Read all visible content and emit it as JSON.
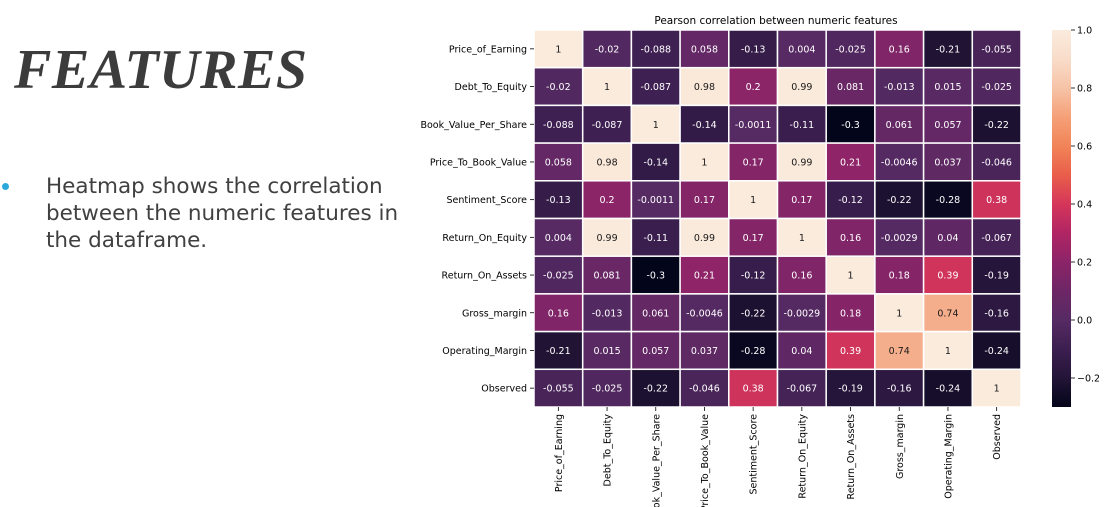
{
  "slide": {
    "title": "FEATURES",
    "bullet": "Heatmap shows the correlation between the numeric features in the dataframe."
  },
  "chart_data": {
    "type": "heatmap",
    "title": "Pearson correlation between numeric features",
    "row_labels": [
      "Price_of_Earning",
      "Debt_To_Equity",
      "Book_Value_Per_Share",
      "Price_To_Book_Value",
      "Sentiment_Score",
      "Return_On_Equity",
      "Return_On_Assets",
      "Gross_margin",
      "Operating_Margin",
      "Observed"
    ],
    "col_labels": [
      "Price_of_Earning",
      "Debt_To_Equity",
      "ook_Value_Per_Share",
      "Price_To_Book_Value",
      "Sentiment_Score",
      "Return_On_Equity",
      "Return_On_Assets",
      "Gross_margin",
      "Operating_Margin",
      "Observed"
    ],
    "values": [
      [
        1,
        -0.02,
        -0.088,
        0.058,
        -0.13,
        0.004,
        -0.025,
        0.16,
        -0.21,
        -0.055
      ],
      [
        -0.02,
        1,
        -0.087,
        0.98,
        0.2,
        0.99,
        0.081,
        -0.013,
        0.015,
        -0.025
      ],
      [
        -0.088,
        -0.087,
        1,
        -0.14,
        -0.0011,
        -0.11,
        -0.3,
        0.061,
        0.057,
        -0.22
      ],
      [
        0.058,
        0.98,
        -0.14,
        1,
        0.17,
        0.99,
        0.21,
        -0.0046,
        0.037,
        -0.046
      ],
      [
        -0.13,
        0.2,
        -0.0011,
        0.17,
        1,
        0.17,
        -0.12,
        -0.22,
        -0.28,
        0.38
      ],
      [
        0.004,
        0.99,
        -0.11,
        0.99,
        0.17,
        1,
        0.16,
        -0.0029,
        0.04,
        -0.067
      ],
      [
        -0.025,
        0.081,
        -0.3,
        0.21,
        -0.12,
        0.16,
        1,
        0.18,
        0.39,
        -0.19
      ],
      [
        0.16,
        -0.013,
        0.061,
        -0.0046,
        -0.22,
        -0.0029,
        0.18,
        1,
        0.74,
        -0.16
      ],
      [
        -0.21,
        0.015,
        0.057,
        0.037,
        -0.28,
        0.04,
        0.39,
        0.74,
        1,
        -0.24
      ],
      [
        -0.055,
        -0.025,
        -0.22,
        -0.046,
        0.38,
        -0.067,
        -0.19,
        -0.16,
        -0.24,
        1
      ]
    ],
    "labels": [
      [
        "1",
        "-0.02",
        "-0.088",
        "0.058",
        "-0.13",
        "0.004",
        "-0.025",
        "0.16",
        "-0.21",
        "-0.055"
      ],
      [
        "-0.02",
        "1",
        "-0.087",
        "0.98",
        "0.2",
        "0.99",
        "0.081",
        "-0.013",
        "0.015",
        "-0.025"
      ],
      [
        "-0.088",
        "-0.087",
        "1",
        "-0.14",
        "-0.0011",
        "-0.11",
        "-0.3",
        "0.061",
        "0.057",
        "-0.22"
      ],
      [
        "0.058",
        "0.98",
        "-0.14",
        "1",
        "0.17",
        "0.99",
        "0.21",
        "-0.0046",
        "0.037",
        "-0.046"
      ],
      [
        "-0.13",
        "0.2",
        "-0.0011",
        "0.17",
        "1",
        "0.17",
        "-0.12",
        "-0.22",
        "-0.28",
        "0.38"
      ],
      [
        "0.004",
        "0.99",
        "-0.11",
        "0.99",
        "0.17",
        "1",
        "0.16",
        "-0.0029",
        "0.04",
        "-0.067"
      ],
      [
        "-0.025",
        "0.081",
        "-0.3",
        "0.21",
        "-0.12",
        "0.16",
        "1",
        "0.18",
        "0.39",
        "-0.19"
      ],
      [
        "0.16",
        "-0.013",
        "0.061",
        "-0.0046",
        "-0.22",
        "-0.0029",
        "0.18",
        "1",
        "0.74",
        "-0.16"
      ],
      [
        "-0.21",
        "0.015",
        "0.057",
        "0.037",
        "-0.28",
        "0.04",
        "0.39",
        "0.74",
        "1",
        "-0.24"
      ],
      [
        "-0.055",
        "-0.025",
        "-0.22",
        "-0.046",
        "0.38",
        "-0.067",
        "-0.19",
        "-0.16",
        "-0.24",
        "1"
      ]
    ],
    "colorbar": {
      "range": [
        -0.3,
        1.0
      ],
      "ticks": [
        1.0,
        0.8,
        0.6,
        0.4,
        0.2,
        0.0,
        -0.2
      ],
      "tick_labels": [
        "1.0",
        "0.8",
        "0.6",
        "0.4",
        "0.2",
        "0.0",
        "−0.2"
      ]
    },
    "colormap_stops": [
      {
        "v": -0.3,
        "c": "#03051a"
      },
      {
        "v": -0.2,
        "c": "#231437"
      },
      {
        "v": -0.1,
        "c": "#3c1f50"
      },
      {
        "v": 0.0,
        "c": "#562a63"
      },
      {
        "v": 0.1,
        "c": "#6d2666"
      },
      {
        "v": 0.2,
        "c": "#8c2468"
      },
      {
        "v": 0.3,
        "c": "#b02564"
      },
      {
        "v": 0.4,
        "c": "#d5365a"
      },
      {
        "v": 0.5,
        "c": "#e95e4a"
      },
      {
        "v": 0.6,
        "c": "#f18458"
      },
      {
        "v": 0.7,
        "c": "#f5a078"
      },
      {
        "v": 0.8,
        "c": "#f6c3a7"
      },
      {
        "v": 0.9,
        "c": "#f9dcc9"
      },
      {
        "v": 1.0,
        "c": "#faebdd"
      }
    ],
    "grid_line_color": "#ffffff"
  }
}
